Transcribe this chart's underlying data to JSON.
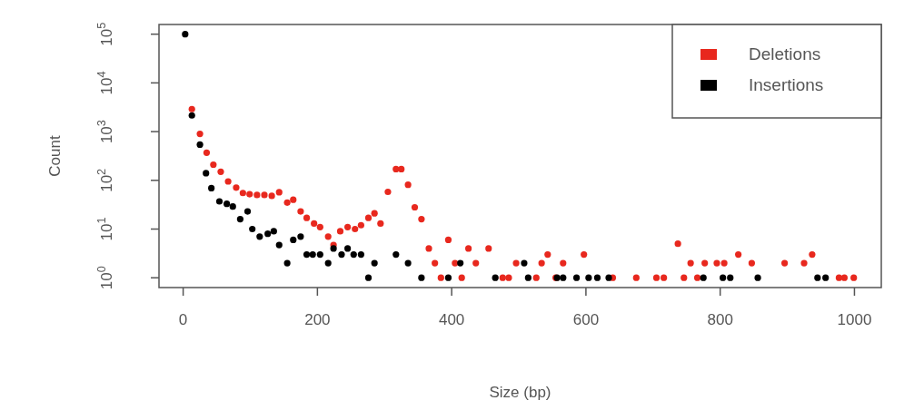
{
  "chart_data": {
    "type": "scatter",
    "xlabel": "Size (bp)",
    "ylabel": "Count",
    "log": "y",
    "marker": "circle",
    "legend": "top right",
    "grid": false,
    "xlim": [
      -36,
      1040
    ],
    "xticks": [
      0,
      200,
      400,
      600,
      800,
      1000
    ],
    "ylim": [
      0.63,
      158000
    ],
    "yticks": [
      {
        "value": 1,
        "label": "10$^{0}$"
      },
      {
        "value": 10,
        "label": "10$^{1}$"
      },
      {
        "value": 100,
        "label": "10$^{2}$"
      },
      {
        "value": 1000,
        "label": "10$^{3}$"
      },
      {
        "value": 10000,
        "label": "10$^{4}$"
      },
      {
        "value": 100000,
        "label": "10$^{5}$"
      }
    ],
    "series": [
      {
        "name": "Deletions",
        "color": "#e8281e",
        "x": [
          13,
          25,
          35,
          45,
          56,
          67,
          79,
          89,
          99,
          110,
          121,
          132,
          143,
          155,
          164,
          175,
          184,
          195,
          204,
          216,
          224,
          234,
          245,
          256,
          265,
          276,
          285,
          294,
          305,
          317,
          325,
          335,
          345,
          355,
          366,
          375,
          384,
          395,
          405,
          415,
          425,
          436,
          455,
          476,
          485,
          496,
          526,
          534,
          543,
          555,
          566,
          597,
          640,
          675,
          705,
          716,
          737,
          746,
          756,
          766,
          777,
          795,
          806,
          827,
          847,
          896,
          925,
          937,
          977,
          985,
          999
        ],
        "values": [
          2900,
          900,
          370,
          210,
          150,
          95,
          71,
          55,
          52,
          50,
          50,
          48,
          57,
          35,
          40,
          23,
          17,
          13,
          11,
          7,
          4.7,
          9,
          11,
          10,
          12,
          17,
          21,
          13,
          58,
          170,
          170,
          81,
          28,
          16,
          4,
          2,
          1,
          6,
          2,
          1,
          4,
          2,
          4,
          1,
          1,
          2,
          1,
          2,
          3,
          1,
          2,
          3,
          1,
          1,
          1,
          1,
          5,
          1,
          2,
          1,
          2,
          2,
          2,
          3,
          2,
          2,
          2,
          3,
          1,
          1,
          1
        ]
      },
      {
        "name": "Insertions",
        "color": "#000000",
        "x": [
          3,
          13,
          25,
          34,
          42,
          54,
          65,
          74,
          85,
          96,
          103,
          114,
          126,
          135,
          143,
          155,
          164,
          175,
          184,
          193,
          204,
          216,
          224,
          236,
          245,
          254,
          265,
          276,
          285,
          317,
          335,
          355,
          395,
          413,
          465,
          508,
          514,
          557,
          566,
          586,
          604,
          617,
          634,
          775,
          804,
          815,
          856,
          945,
          957
        ],
        "values": [
          100000,
          2150,
          540,
          140,
          69,
          37,
          33,
          29,
          16,
          23,
          10,
          7,
          8,
          9,
          4.7,
          2,
          6,
          7,
          3,
          3,
          3,
          2,
          4,
          3,
          4,
          3,
          3,
          1,
          2,
          3,
          2,
          1,
          1,
          2,
          1,
          2,
          1,
          1,
          1,
          1,
          1,
          1,
          1,
          1,
          1,
          1,
          1,
          1,
          1
        ]
      }
    ]
  }
}
